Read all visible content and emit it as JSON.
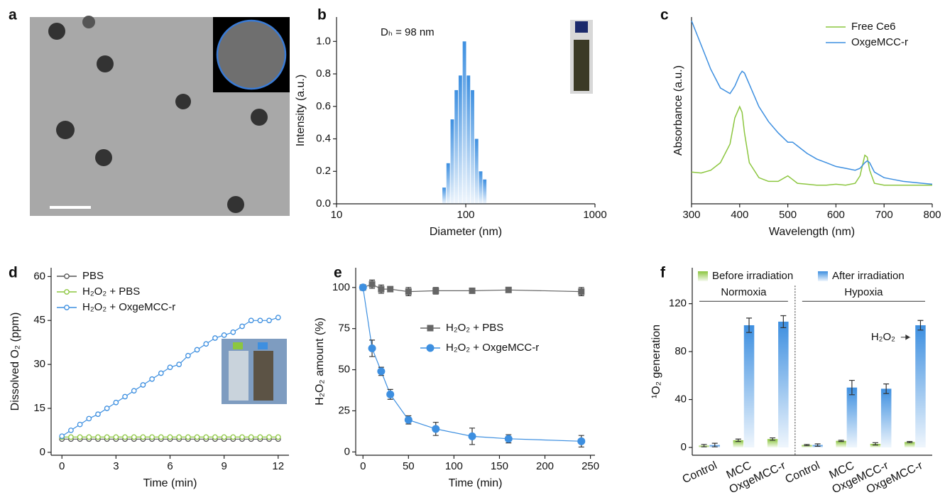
{
  "chart_data": [
    {
      "type": "image",
      "panel": "a"
    },
    {
      "type": "bar",
      "panel": "b",
      "annotation": "Dₕ = 98 nm",
      "xlabel": "Diameter (nm)",
      "ylabel": "Intensity (a.u.)",
      "x": [
        68,
        73.1,
        78.6,
        84.5,
        90.8,
        97.6,
        104.9,
        112.8,
        121.3,
        130.4,
        140.2
      ],
      "values": [
        0.1,
        0.25,
        0.52,
        0.7,
        0.79,
        1.0,
        0.79,
        0.7,
        0.4,
        0.2,
        0.15
      ],
      "color": "#3d8fe0",
      "xlog": true,
      "xlim": [
        10,
        1000
      ],
      "xticks": [
        10,
        100,
        1000
      ],
      "ylim": [
        0,
        1.15
      ],
      "yticks": [
        {
          "value": 0,
          "label": "0.0"
        },
        {
          "value": 0.2,
          "label": "0.2"
        },
        {
          "value": 0.4,
          "label": "0.4"
        },
        {
          "value": 0.6,
          "label": "0.6"
        },
        {
          "value": 0.8,
          "label": "0.8"
        },
        {
          "value": 1.0,
          "label": "1.0"
        }
      ]
    },
    {
      "type": "line",
      "panel": "c",
      "xlabel": "Wavelength (nm)",
      "ylabel": "Absorbance (a.u.)",
      "legend": "upper right",
      "x": [
        300,
        320,
        340,
        360,
        380,
        390,
        400,
        405,
        410,
        420,
        440,
        460,
        480,
        500,
        510,
        520,
        540,
        560,
        580,
        600,
        620,
        640,
        650,
        660,
        665,
        670,
        680,
        700,
        720,
        740,
        760,
        780,
        800
      ],
      "series": [
        {
          "name": "Free Ce6",
          "color": "#8cc63f",
          "values": [
            0.17,
            0.165,
            0.18,
            0.22,
            0.32,
            0.46,
            0.52,
            0.49,
            0.38,
            0.22,
            0.14,
            0.12,
            0.12,
            0.15,
            0.13,
            0.11,
            0.105,
            0.1,
            0.1,
            0.105,
            0.1,
            0.11,
            0.15,
            0.26,
            0.25,
            0.18,
            0.11,
            0.1,
            0.1,
            0.1,
            0.1,
            0.1,
            0.1
          ]
        },
        {
          "name": "OxgeMCC-r",
          "color": "#3d8fe0",
          "values": [
            0.98,
            0.85,
            0.72,
            0.62,
            0.59,
            0.63,
            0.69,
            0.71,
            0.7,
            0.64,
            0.52,
            0.44,
            0.38,
            0.33,
            0.33,
            0.31,
            0.27,
            0.24,
            0.22,
            0.2,
            0.19,
            0.18,
            0.19,
            0.22,
            0.23,
            0.22,
            0.17,
            0.14,
            0.13,
            0.12,
            0.115,
            0.11,
            0.105
          ]
        }
      ],
      "xlim": [
        300,
        800
      ],
      "xticks": [
        300,
        400,
        500,
        600,
        700,
        800
      ],
      "ylim": [
        0,
        1
      ]
    },
    {
      "type": "line",
      "panel": "d",
      "xlabel": "Time (min)",
      "ylabel": "Dissolved O₂ (ppm)",
      "legend": "upper left",
      "x": [
        0,
        0.5,
        1,
        1.5,
        2,
        2.5,
        3,
        3.5,
        4,
        4.5,
        5,
        5.5,
        6,
        6.5,
        7,
        7.5,
        8,
        8.5,
        9,
        9.5,
        10,
        10.5,
        11,
        11.5,
        12
      ],
      "series": [
        {
          "name": "PBS",
          "color": "#555555",
          "marker": "open-circle",
          "values": [
            4.5,
            4.5,
            4.5,
            4.5,
            4.5,
            4.5,
            4.5,
            4.5,
            4.5,
            4.5,
            4.5,
            4.5,
            4.5,
            4.5,
            4.5,
            4.5,
            4.5,
            4.5,
            4.5,
            4.5,
            4.5,
            4.5,
            4.5,
            4.5,
            4.5
          ]
        },
        {
          "name": "H₂O₂ + PBS",
          "color": "#8cc63f",
          "marker": "open-circle",
          "values": [
            5.2,
            5.2,
            5.2,
            5.2,
            5.2,
            5.2,
            5.2,
            5.2,
            5.2,
            5.2,
            5.2,
            5.2,
            5.2,
            5.2,
            5.2,
            5.2,
            5.2,
            5.2,
            5.2,
            5.2,
            5.2,
            5.2,
            5.2,
            5.2,
            5.2
          ]
        },
        {
          "name": "H₂O₂ + OxgeMCC-r",
          "color": "#3d8fe0",
          "marker": "open-circle",
          "values": [
            5.5,
            7.5,
            9.5,
            11.5,
            13,
            15,
            17,
            19,
            21,
            23,
            25,
            27,
            29,
            30,
            33,
            35,
            37,
            39,
            40,
            41,
            43,
            45,
            45,
            45,
            46
          ]
        }
      ],
      "xlim": [
        -0.6,
        12.6
      ],
      "xticks": [
        0,
        3,
        6,
        9,
        12
      ],
      "ylim": [
        -1,
        63
      ],
      "yticks": [
        0,
        15,
        30,
        45,
        60
      ]
    },
    {
      "type": "line",
      "panel": "e",
      "xlabel": "Time (min)",
      "ylabel": "H₂O₂ amount (%)",
      "legend": "center",
      "x": [
        0,
        10,
        20,
        30,
        50,
        80,
        120,
        160,
        240
      ],
      "series": [
        {
          "name": "H₂O₂ + PBS",
          "color": "#666666",
          "marker": "square",
          "values": [
            100,
            102,
            99,
            99,
            97.5,
            98,
            98,
            98.5,
            97.5
          ],
          "errors": [
            1,
            2.5,
            2.5,
            1.5,
            2.5,
            2,
            1.5,
            1.5,
            2.5
          ]
        },
        {
          "name": "H₂O₂ + OxgeMCC-r",
          "color": "#3d8fe0",
          "marker": "circle",
          "values": [
            100,
            63,
            49,
            35,
            19.5,
            14,
            9.5,
            8,
            6.5
          ],
          "errors": [
            0,
            5,
            2.5,
            3,
            2.5,
            4,
            5,
            2.5,
            3.5
          ]
        }
      ],
      "xlim": [
        -8,
        255
      ],
      "xticks": [
        0,
        50,
        100,
        150,
        200,
        250
      ],
      "ylim": [
        -2,
        112
      ],
      "yticks": [
        0,
        25,
        50,
        75,
        100
      ]
    },
    {
      "type": "grouped-bar",
      "panel": "f",
      "ylabel": "¹O₂ generation",
      "legend": "top",
      "groups": [
        "Normoxia",
        "Hypoxia"
      ],
      "annotation": "H₂O₂",
      "categories": [
        "Control",
        "MCC",
        "OxgeMCC-r",
        "Control",
        "MCC",
        "OxgeMCC-r",
        "OxgeMCC-r"
      ],
      "series": [
        {
          "name": "Before irradiation",
          "color": "#8cc63f",
          "values": [
            1.5,
            6,
            7,
            2,
            5.5,
            3,
            4.5
          ],
          "errors": [
            1,
            1,
            1,
            0.5,
            0.5,
            1,
            0.5
          ]
        },
        {
          "name": "After irradiation",
          "color": "#3d8fe0",
          "values": [
            2,
            102,
            105,
            2,
            50,
            49,
            102
          ],
          "errors": [
            1.5,
            6,
            5,
            1,
            6,
            4,
            4
          ]
        }
      ],
      "ylim": [
        -6.5,
        150
      ],
      "yticks": [
        0,
        40,
        80,
        120
      ]
    }
  ]
}
